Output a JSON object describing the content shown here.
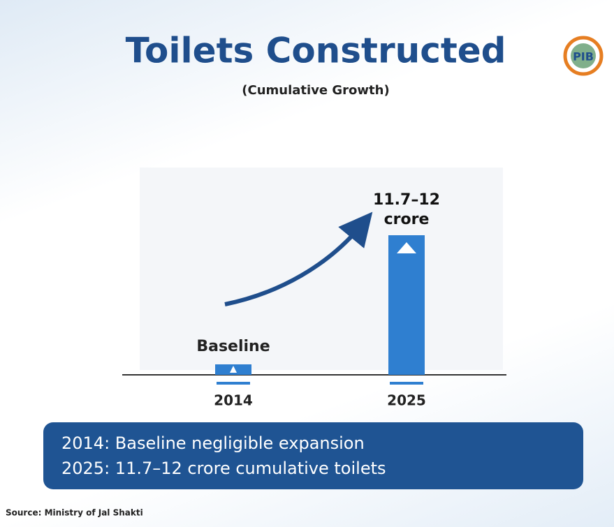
{
  "title": "Toilets Constructed",
  "subtitle": "(Cumulative Growth)",
  "chart_data": {
    "type": "bar",
    "categories": [
      "2014",
      "2025"
    ],
    "values": [
      0.9,
      12
    ],
    "value_labels": [
      null,
      "11.7–12 crore"
    ],
    "annotations": [
      "Baseline"
    ],
    "color": "#2f7fd0"
  },
  "summary": [
    "2014: Baseline negligible expansion",
    "2025: 11.7–12 crore cumulative toilets"
  ],
  "source": "Source: Ministry of Jal Shakti"
}
